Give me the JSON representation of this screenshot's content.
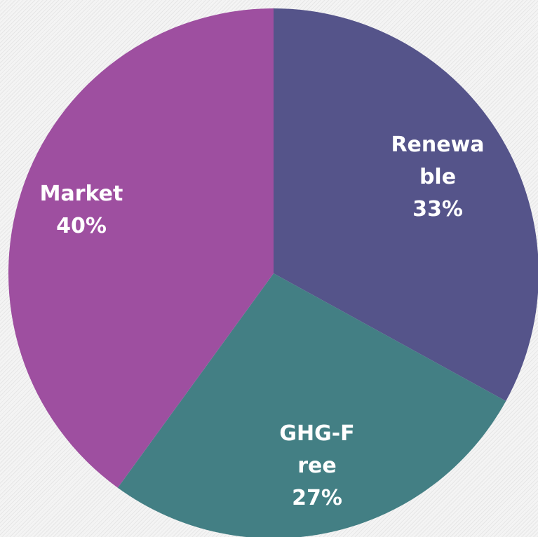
{
  "chart_data": {
    "type": "pie",
    "categories": [
      "Renewable",
      "GHG-Free",
      "Market"
    ],
    "values": [
      33,
      27,
      40
    ],
    "value_labels": [
      "33%",
      "27%",
      "40%"
    ],
    "colors": [
      "#55548a",
      "#437f84",
      "#9e4fa0"
    ]
  }
}
